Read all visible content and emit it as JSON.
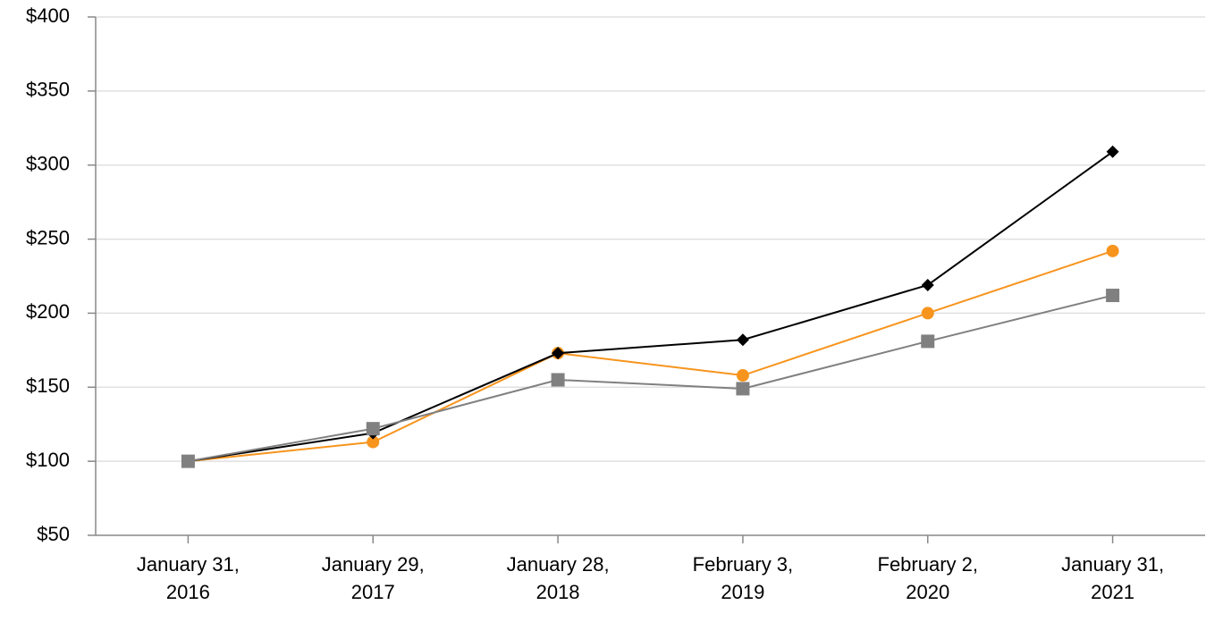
{
  "chart_data": {
    "type": "line",
    "categories": [
      "January 31, 2016",
      "January 29, 2017",
      "January 28, 2018",
      "February 3, 2019",
      "February 2, 2020",
      "January 31, 2021"
    ],
    "series": [
      {
        "color": "#f7941d",
        "marker": "circle",
        "values": [
          100,
          113,
          173,
          158,
          200,
          242
        ]
      },
      {
        "color": "#000000",
        "marker": "diamond",
        "values": [
          100,
          119,
          173,
          182,
          219,
          309
        ]
      },
      {
        "color": "#808080",
        "marker": "square",
        "values": [
          100,
          122,
          155,
          149,
          181,
          212
        ]
      }
    ],
    "ylim": [
      50,
      400
    ],
    "yticks": [
      {
        "value": 50,
        "label": "$50"
      },
      {
        "value": 100,
        "label": "$100"
      },
      {
        "value": 150,
        "label": "$150"
      },
      {
        "value": 200,
        "label": "$200"
      },
      {
        "value": 250,
        "label": "$250"
      },
      {
        "value": 300,
        "label": "$300"
      },
      {
        "value": 350,
        "label": "$350"
      },
      {
        "value": 400,
        "label": "$400"
      }
    ],
    "grid": true
  }
}
